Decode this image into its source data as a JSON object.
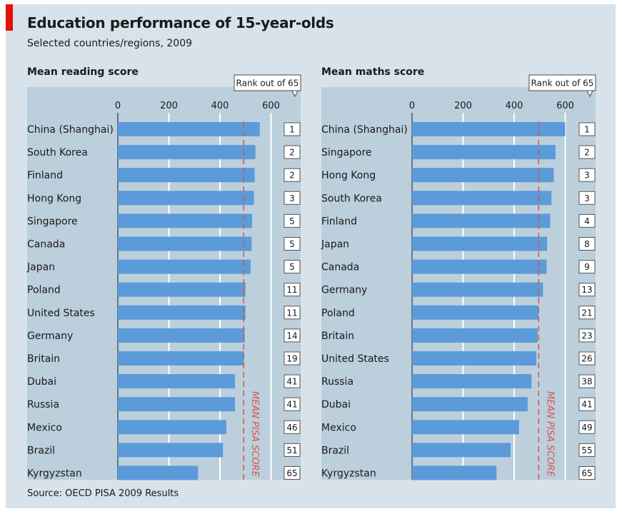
{
  "title": "Education performance of 15-year-olds",
  "subtitle": "Selected countries/regions, 2009",
  "source": "Source: OECD PISA 2009 Results",
  "colors": {
    "bar": "#5b9bd9",
    "mean_line": "#d9544d",
    "plot_bg": "#bccfdc",
    "accent": "#e3120b"
  },
  "chart_data": [
    {
      "type": "bar",
      "title": "Mean reading score",
      "rank_label": "Rank out of 65",
      "mean_label": "MEAN PISA SCORE",
      "mean_value": 493,
      "xlim": [
        0,
        700
      ],
      "xticks": [
        0,
        200,
        400,
        600
      ],
      "categories": [
        "China (Shanghai)",
        "South Korea",
        "Finland",
        "Hong Kong",
        "Singapore",
        "Canada",
        "Japan",
        "Poland",
        "United States",
        "Germany",
        "Britain",
        "Dubai",
        "Russia",
        "Mexico",
        "Brazil",
        "Kyrgyzstan"
      ],
      "values": [
        556,
        539,
        536,
        533,
        526,
        524,
        520,
        500,
        500,
        497,
        494,
        459,
        459,
        425,
        412,
        314
      ],
      "ranks": [
        "1",
        "2",
        "2",
        "3",
        "5",
        "5",
        "5",
        "11",
        "11",
        "14",
        "19",
        "41",
        "41",
        "46",
        "51",
        "65"
      ]
    },
    {
      "type": "bar",
      "title": "Mean maths score",
      "rank_label": "Rank out of 65",
      "mean_label": "MEAN PISA SCORE",
      "mean_value": 496,
      "xlim": [
        0,
        700
      ],
      "xticks": [
        0,
        200,
        400,
        600
      ],
      "categories": [
        "China (Shanghai)",
        "Singapore",
        "Hong Kong",
        "South Korea",
        "Finland",
        "Japan",
        "Canada",
        "Germany",
        "Poland",
        "Britain",
        "United States",
        "Russia",
        "Dubai",
        "Mexico",
        "Brazil",
        "Kyrgyzstan"
      ],
      "values": [
        600,
        562,
        555,
        546,
        541,
        529,
        527,
        513,
        495,
        492,
        487,
        468,
        453,
        419,
        386,
        331
      ],
      "ranks": [
        "1",
        "2",
        "3",
        "3",
        "4",
        "8",
        "9",
        "13",
        "21",
        "23",
        "26",
        "38",
        "41",
        "49",
        "55",
        "65"
      ]
    }
  ]
}
